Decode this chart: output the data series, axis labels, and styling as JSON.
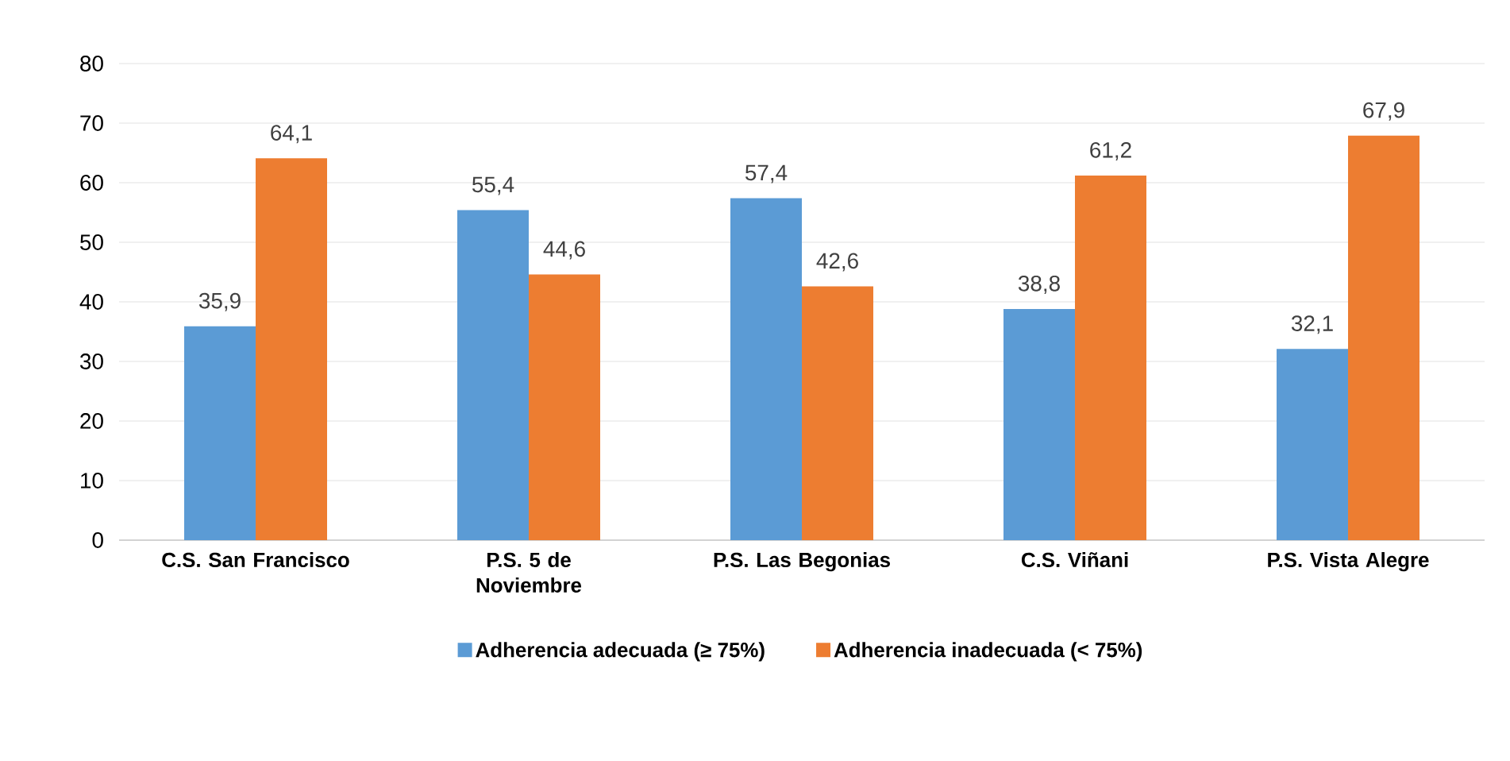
{
  "chart_data": {
    "type": "bar",
    "categories": [
      "C.S. San Francisco",
      "P.S. 5 de Noviembre",
      "P.S. Las Begonias",
      "C.S. Viñani",
      "P.S. Vista Alegre"
    ],
    "series": [
      {
        "name": "Adherencia adecuada (≥ 75%)",
        "color": "#5b9bd5",
        "values": [
          35.9,
          55.4,
          57.4,
          38.8,
          32.1
        ],
        "value_labels": [
          "35,9",
          "55,4",
          "57,4",
          "38,8",
          "32,1"
        ]
      },
      {
        "name": "Adherencia inadecuada (< 75%)",
        "color": "#ed7d31",
        "values": [
          64.1,
          44.6,
          42.6,
          61.2,
          67.9
        ],
        "value_labels": [
          "64,1",
          "44,6",
          "42,6",
          "61,2",
          "67,9"
        ]
      }
    ],
    "ylim": [
      0,
      80
    ],
    "yticks": [
      0,
      10,
      20,
      30,
      40,
      50,
      60,
      70,
      80
    ],
    "grid": "y",
    "legend": "bottom"
  }
}
